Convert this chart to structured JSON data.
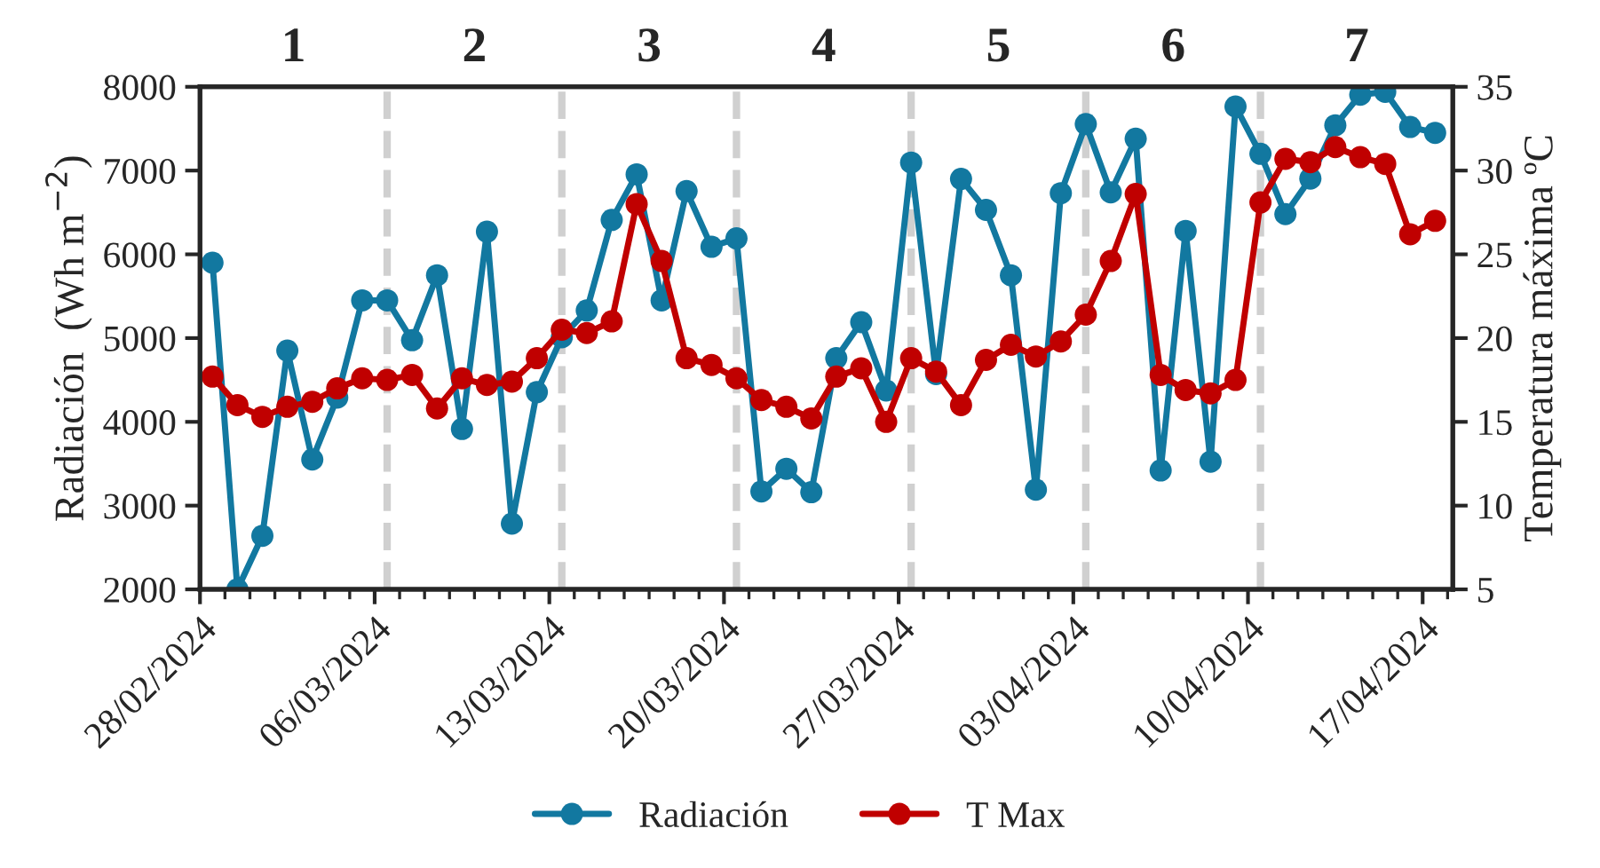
{
  "chart_data": {
    "type": "line",
    "ylabel": "Radiación  (Wh m$^{−2}$)",
    "y2label": "Temperatura máxima ºC",
    "x": [
      "2024-02-28T12:00",
      "2024-02-29T12:00",
      "2024-03-01T12:00",
      "2024-03-02T12:00",
      "2024-03-03T12:00",
      "2024-03-04T12:00",
      "2024-03-05T12:00",
      "2024-03-06T12:00",
      "2024-03-07T12:00",
      "2024-03-08T12:00",
      "2024-03-09T12:00",
      "2024-03-10T12:00",
      "2024-03-11T12:00",
      "2024-03-12T12:00",
      "2024-03-13T12:00",
      "2024-03-14T12:00",
      "2024-03-15T12:00",
      "2024-03-16T12:00",
      "2024-03-17T12:00",
      "2024-03-18T12:00",
      "2024-03-19T12:00",
      "2024-03-20T12:00",
      "2024-03-21T12:00",
      "2024-03-22T12:00",
      "2024-03-23T12:00",
      "2024-03-24T12:00",
      "2024-03-25T12:00",
      "2024-03-26T12:00",
      "2024-03-27T12:00",
      "2024-03-28T12:00",
      "2024-03-29T12:00",
      "2024-03-30T12:00",
      "2024-03-31T12:00",
      "2024-04-01T12:00",
      "2024-04-02T12:00",
      "2024-04-03T12:00",
      "2024-04-04T12:00",
      "2024-04-05T12:00",
      "2024-04-06T12:00",
      "2024-04-07T12:00",
      "2024-04-08T12:00",
      "2024-04-09T12:00",
      "2024-04-10T12:00",
      "2024-04-11T12:00",
      "2024-04-12T12:00",
      "2024-04-13T12:00",
      "2024-04-14T12:00",
      "2024-04-15T12:00",
      "2024-04-16T12:00",
      "2024-04-17T12:00"
    ],
    "series": [
      {
        "name": "Radiación",
        "color": "#1278a0",
        "values": [
          5900,
          2000,
          2640,
          4850,
          3550,
          4290,
          5450,
          5450,
          4975,
          5750,
          3915,
          6270,
          2785,
          4355,
          5010,
          5330,
          6410,
          6955,
          5450,
          6755,
          6090,
          6190,
          3170,
          3440,
          3160,
          4760,
          5190,
          4375,
          7095,
          4570,
          6900,
          6530,
          5750,
          3190,
          6730,
          7555,
          6740,
          7380,
          3420,
          6280,
          3525,
          7765,
          7200,
          6480,
          6905,
          7540,
          7905,
          7940,
          7520,
          7450
        ]
      },
      {
        "name": "T Max",
        "color": "#c00000",
        "axis": "y2",
        "values": [
          17.7,
          16.0,
          15.3,
          15.9,
          16.2,
          17.0,
          17.6,
          17.5,
          17.8,
          15.8,
          17.6,
          17.2,
          17.4,
          18.8,
          20.5,
          20.3,
          21.0,
          28.0,
          24.6,
          18.8,
          18.4,
          17.6,
          16.3,
          15.9,
          15.2,
          17.7,
          18.2,
          15.0,
          18.8,
          18.0,
          16.0,
          18.7,
          19.6,
          18.9,
          19.8,
          21.4,
          24.6,
          28.6,
          17.8,
          16.9,
          16.7,
          17.5,
          28.1,
          30.7,
          30.5,
          31.4,
          30.8,
          30.4,
          26.2,
          27.0
        ]
      }
    ],
    "xlim": [
      "2024-02-28",
      "2024-04-18T05:00"
    ],
    "xticks": [
      {
        "value": "2024-02-28",
        "label": "28/02/2024"
      },
      {
        "value": "2024-03-06",
        "label": "06/03/2024"
      },
      {
        "value": "2024-03-13",
        "label": "13/03/2024"
      },
      {
        "value": "2024-03-20",
        "label": "20/03/2024"
      },
      {
        "value": "2024-03-27",
        "label": "27/03/2024"
      },
      {
        "value": "2024-04-03",
        "label": "03/04/2024"
      },
      {
        "value": "2024-04-10",
        "label": "10/04/2024"
      },
      {
        "value": "2024-04-17",
        "label": "17/04/2024"
      }
    ],
    "ylim": [
      2000,
      8000
    ],
    "yticks": [
      2000,
      3000,
      4000,
      5000,
      6000,
      7000,
      8000
    ],
    "y2lim": [
      5,
      35
    ],
    "y2ticks": [
      5,
      10,
      15,
      20,
      25,
      30,
      35
    ],
    "ref_lines": [
      {
        "axis": "x",
        "value": "2024-03-06T12:00",
        "color": "#d0d0d0",
        "line_style": "dashed"
      },
      {
        "axis": "x",
        "value": "2024-03-13T12:00",
        "color": "#d0d0d0",
        "line_style": "dashed"
      },
      {
        "axis": "x",
        "value": "2024-03-20T12:00",
        "color": "#d0d0d0",
        "line_style": "dashed"
      },
      {
        "axis": "x",
        "value": "2024-03-27T12:00",
        "color": "#d0d0d0",
        "line_style": "dashed"
      },
      {
        "axis": "x",
        "value": "2024-04-03T12:00",
        "color": "#d0d0d0",
        "line_style": "dashed"
      },
      {
        "axis": "x",
        "value": "2024-04-10T12:00",
        "color": "#d0d0d0",
        "line_style": "dashed"
      }
    ],
    "annotations": [
      "1",
      "2",
      "3",
      "4",
      "5",
      "6",
      "7"
    ],
    "marker": "circle",
    "line_style": "solid",
    "grid": false,
    "legend": "bottom"
  }
}
